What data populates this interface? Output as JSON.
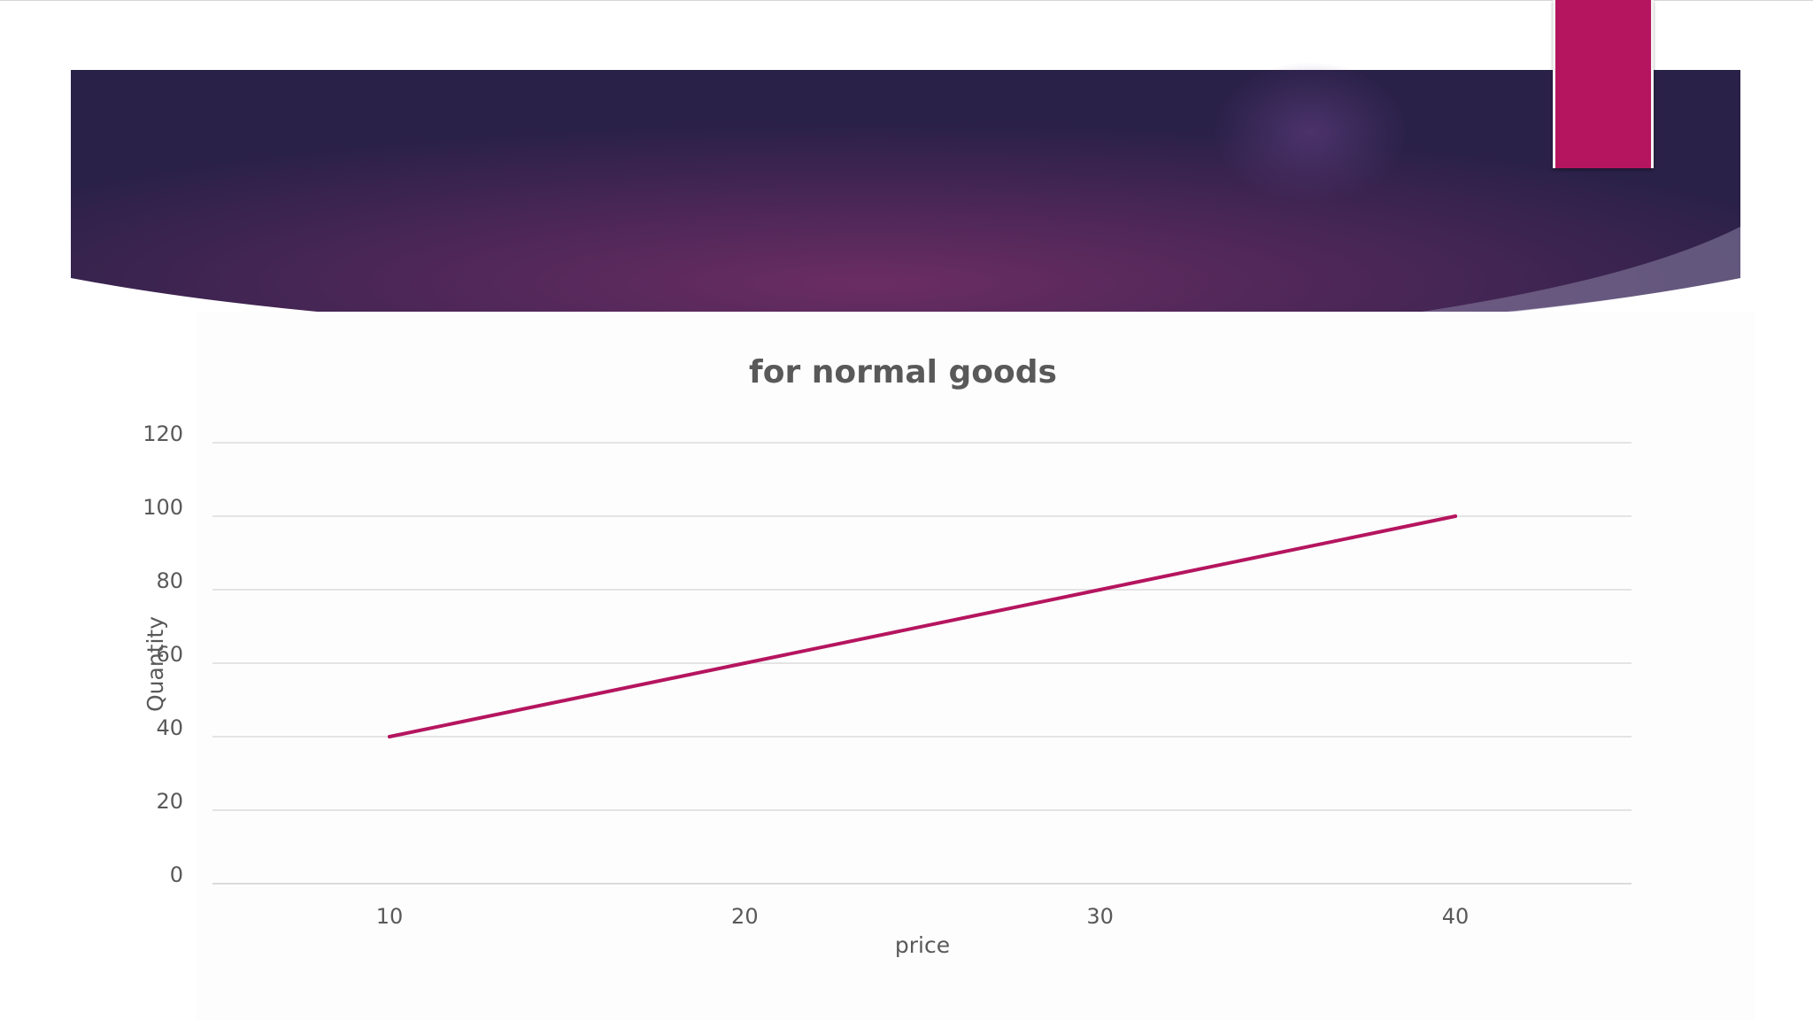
{
  "slide": {
    "accent_color": "#b5155f",
    "banner_colors": [
      "#2a2148",
      "#6b2d63",
      "#2b2248"
    ]
  },
  "chart_data": {
    "type": "line",
    "title": "for normal goods",
    "xlabel": "price",
    "ylabel": "Quantity",
    "categories": [
      "10",
      "20",
      "30",
      "40"
    ],
    "series": [
      {
        "values": [
          40,
          60,
          80,
          100
        ],
        "color": "#b5155f"
      }
    ],
    "yticks": [
      0,
      20,
      40,
      60,
      80,
      100,
      120
    ],
    "ylim": [
      0,
      120
    ],
    "grid": true,
    "legend": "none"
  }
}
